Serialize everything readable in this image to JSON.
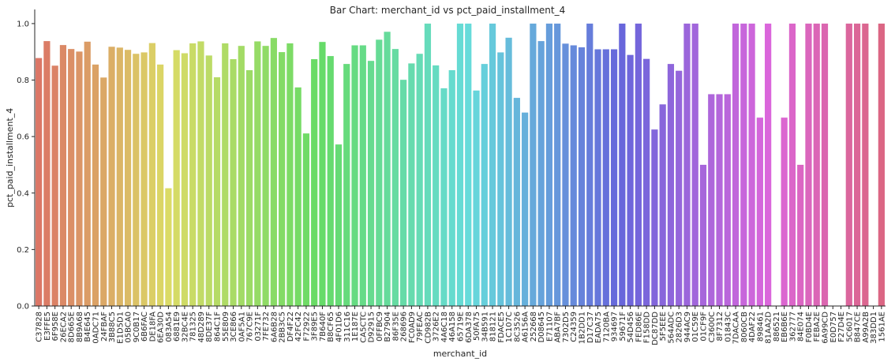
{
  "chart_data": {
    "type": "bar",
    "title": "Bar Chart: merchant_id vs pct_paid_installment_4",
    "xlabel": "merchant_id",
    "ylabel": "pct_paid_installment_4",
    "ylim": [
      0,
      1.05
    ],
    "yticks": [
      "0.0",
      "0.2",
      "0.4",
      "0.6",
      "0.8",
      "1.0"
    ],
    "grid": false,
    "legend": "none",
    "categories": [
      "C37828",
      "E3FFE5",
      "6F958E",
      "26ECA2",
      "8D665E",
      "8B9A68",
      "B4E645",
      "0ADC71",
      "24FBAF",
      "3B88C5",
      "E1D5D1",
      "05BCA0",
      "9C0B17",
      "6B6FAC",
      "DE18FA",
      "6EA30D",
      "083A54",
      "6881E9",
      "32BC4E",
      "781325",
      "48D289",
      "8DE37F",
      "864C1F",
      "55E809",
      "3CE866",
      "0AF5A1",
      "767C9E",
      "03271F",
      "7FE732",
      "6A6B28",
      "2BB3C5",
      "DF4F22",
      "42FC42",
      "F72922",
      "3F89E5",
      "7B640F",
      "B8CF65",
      "4F01D6",
      "311C16",
      "1E187E",
      "CA5CTC",
      "D92915",
      "0FFBC9",
      "B27904",
      "86F35E",
      "268696",
      "FC0AD9",
      "79FEAC",
      "CD982B",
      "3726E2",
      "4A6C18",
      "46A158",
      "65719E",
      "6DA378",
      "50FA75",
      "34B591",
      "818121",
      "FDACE5",
      "1C107C",
      "8C3526",
      "A6156A",
      "252668",
      "D08645",
      "E71107",
      "ABA7BF",
      "7302D5",
      "C24359",
      "1B2DD1",
      "D17C37",
      "EADA75",
      "7120BA",
      "934697",
      "59671F",
      "54D456",
      "FED86E",
      "F158DD",
      "DC87DD",
      "5F5EEE",
      "564ADC",
      "2826D3",
      "944AC9",
      "01C59E",
      "01CF9F",
      "C3600C",
      "8F7312",
      "01843C",
      "7DACAA",
      "8060CB",
      "4DAF22",
      "898461",
      "81AA2D",
      "886521",
      "EB6B6E",
      "362777",
      "84E074",
      "F0BD4E",
      "FEBA2E",
      "6A99CD",
      "E0D757",
      "F27D4E",
      "5C6017",
      "B847CE",
      "A99A2B",
      "383DD1",
      "1561AE"
    ],
    "values": [
      0.878,
      0.938,
      0.851,
      0.924,
      0.91,
      0.901,
      0.936,
      0.855,
      0.809,
      0.918,
      0.915,
      0.907,
      0.893,
      0.898,
      0.931,
      0.855,
      0.417,
      0.906,
      0.895,
      0.93,
      0.937,
      0.887,
      0.81,
      0.93,
      0.874,
      0.921,
      0.835,
      0.937,
      0.921,
      0.949,
      0.899,
      0.93,
      0.774,
      0.611,
      0.874,
      0.935,
      0.885,
      0.572,
      0.857,
      0.923,
      0.923,
      0.868,
      0.943,
      0.971,
      0.91,
      0.801,
      0.859,
      0.893,
      1.0,
      0.852,
      0.771,
      0.835,
      1.0,
      1.0,
      0.763,
      0.857,
      1.0,
      0.898,
      0.95,
      0.737,
      0.685,
      1.0,
      0.938,
      1.0,
      1.0,
      0.929,
      0.923,
      0.916,
      1.0,
      0.909,
      0.909,
      0.909,
      1.0,
      0.889,
      1.0,
      0.875,
      0.625,
      0.714,
      0.857,
      0.833,
      1.0,
      1.0,
      0.5,
      0.75,
      0.75,
      0.75,
      1.0,
      1.0,
      1.0,
      0.667,
      1.0,
      0,
      0.667,
      1.0,
      0.5,
      1.0,
      1.0,
      1.0,
      0,
      0,
      1.0,
      1.0,
      1.0,
      0,
      1.0
    ]
  }
}
